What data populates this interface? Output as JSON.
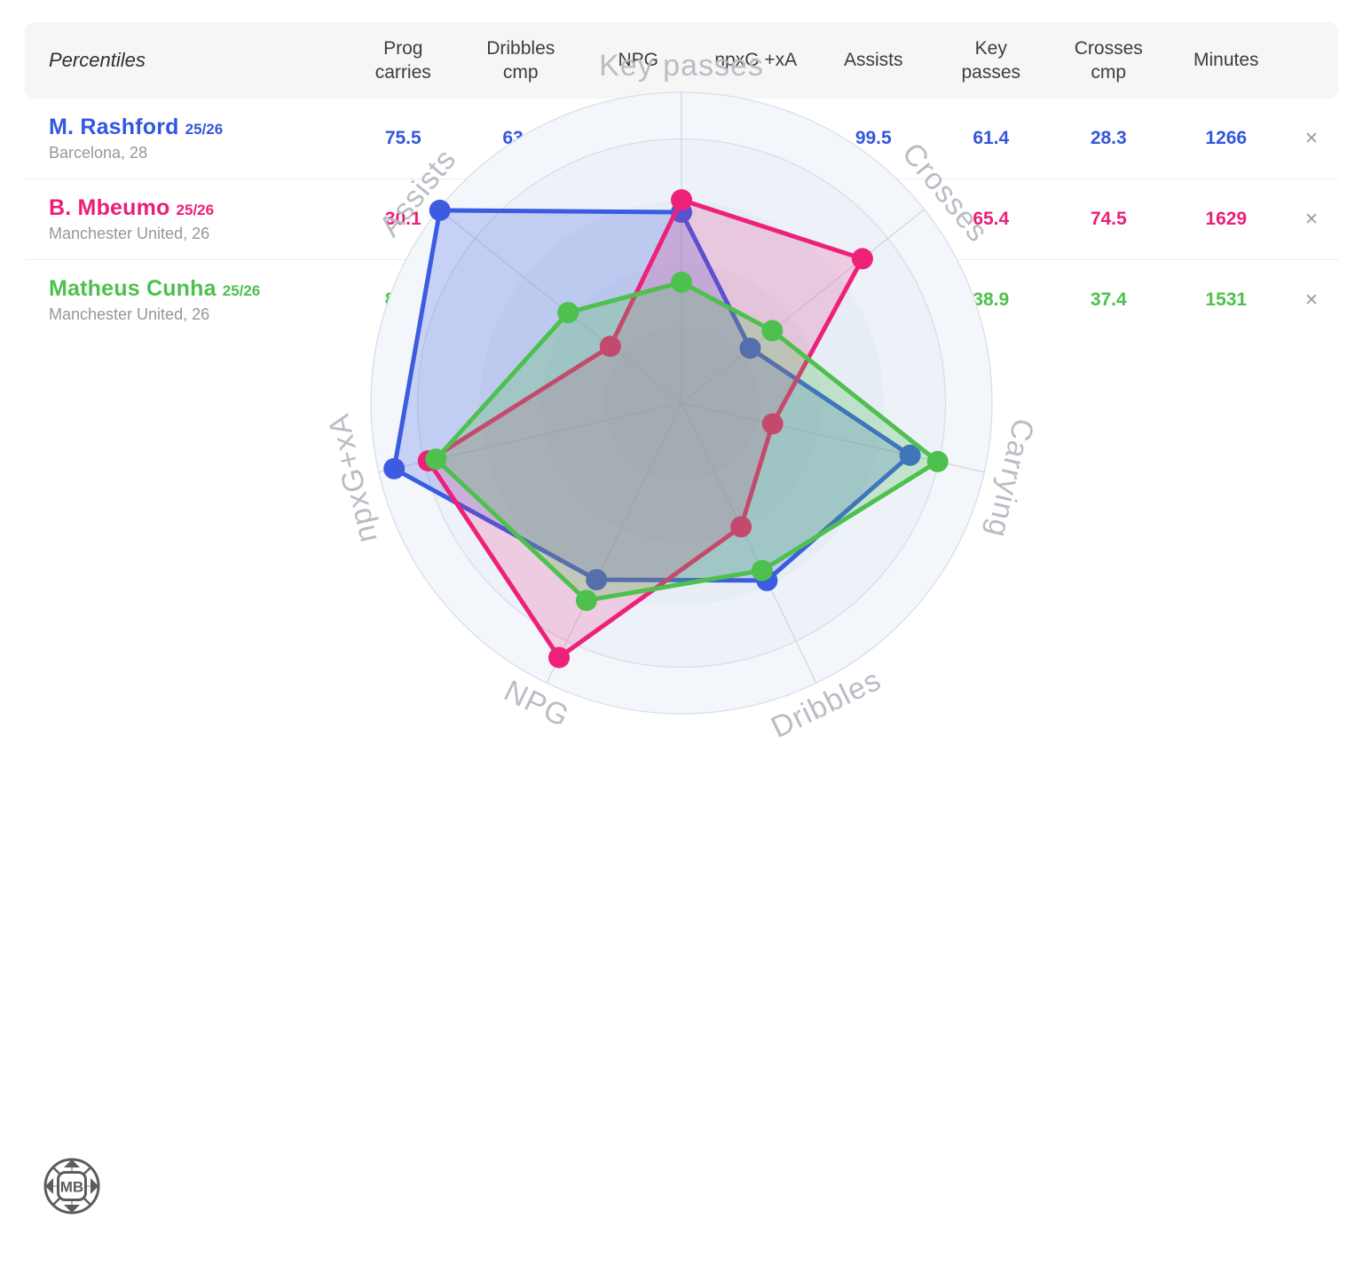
{
  "table": {
    "title": "Percentiles",
    "columns": [
      "Prog\ncarries",
      "Dribbles\ncmp",
      "NPG",
      "npxG +xA",
      "Assists",
      "Key\npasses",
      "Crosses\ncmp",
      "Minutes"
    ],
    "remove_symbol": "✕",
    "rows": [
      {
        "name": "M. Rashford",
        "season": "25/26",
        "club": "Barcelona, 28",
        "color": "#3357de",
        "values": [
          "75.5",
          "63.4",
          "63.1",
          "94.9",
          "99.5",
          "61.4",
          "28.3",
          "1266"
        ]
      },
      {
        "name": "B. Mbeumo",
        "season": "25/26",
        "club": "Manchester United, 26",
        "color": "#ea1f78",
        "values": [
          "30.1",
          "44.2",
          "90.9",
          "83.6",
          "29.3",
          "65.4",
          "74.5",
          "1629"
        ]
      },
      {
        "name": "Matheus Cunha",
        "season": "25/26",
        "club": "Manchester United, 26",
        "color": "#4ec04e",
        "values": [
          "84.6",
          "59.8",
          "70.5",
          "81.1",
          "46.7",
          "38.9",
          "37.4",
          "1531"
        ]
      }
    ]
  },
  "chart_data": {
    "type": "radar",
    "axes": [
      "Key passes",
      "Crosses",
      "Carrying",
      "Dribbles",
      "NPG",
      "npxG+xA",
      "Assists"
    ],
    "scale_min": 0,
    "scale_max": 100,
    "grid": "circular",
    "legend_position": "none",
    "series": [
      {
        "name": "M. Rashford 25/26",
        "color": "#3b5ce0",
        "values": [
          61.4,
          28.3,
          75.5,
          63.4,
          63.1,
          94.9,
          99.5
        ]
      },
      {
        "name": "B. Mbeumo 25/26",
        "color": "#ee2178",
        "values": [
          65.4,
          74.5,
          30.1,
          44.2,
          90.9,
          83.6,
          29.3
        ]
      },
      {
        "name": "Matheus Cunha 25/26",
        "color": "#4ec04e",
        "values": [
          38.9,
          37.4,
          84.6,
          59.8,
          70.5,
          81.1,
          46.7
        ]
      }
    ]
  },
  "logo": {
    "text": "MB"
  }
}
